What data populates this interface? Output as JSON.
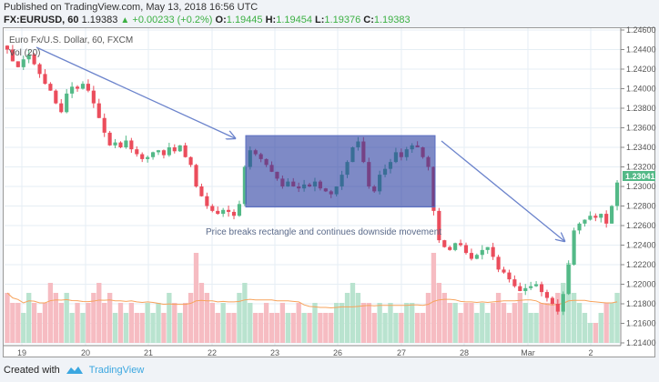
{
  "header": {
    "published": "Published on TradingView.com, May 13, 2018 16:56 UTC",
    "symbol": "FX:EURUSD, 60",
    "last": "1.19383",
    "change": "+0.00233 (+0.2%)",
    "o_label": "O:",
    "o": "1.19445",
    "h_label": "H:",
    "h": "1.19454",
    "l_label": "L:",
    "l": "1.19376",
    "c_label": "C:",
    "c": "1.19383"
  },
  "legend": {
    "title": "Euro Fx/U.S. Dollar, 60, FXCM",
    "vol": "Vol (20)"
  },
  "annotation": {
    "text": "Price breaks rectangle and continues downside movement",
    "rect_top": 1.2352,
    "rect_bottom": 1.2279
  },
  "last_price_label": "1.23041",
  "footer": {
    "created": "Created with",
    "brand": "TradingView"
  },
  "colors": {
    "up": "#53b987",
    "down": "#eb4d5c",
    "annotation": "#5b6fc2",
    "ma": "#f7a35c",
    "badge": "#53b987"
  },
  "chart_data": {
    "type": "candlestick",
    "ylim": [
      1.214,
      1.246
    ],
    "y_ticks": [
      "1.24600",
      "1.24400",
      "1.24200",
      "1.24000",
      "1.23800",
      "1.23600",
      "1.23400",
      "1.23200",
      "1.23000",
      "1.22800",
      "1.22600",
      "1.22400",
      "1.22200",
      "1.22000",
      "1.21800",
      "1.21600",
      "1.21400"
    ],
    "x_ticks": [
      "19",
      "20",
      "21",
      "22",
      "23",
      "26",
      "27",
      "28",
      "Mar",
      "2"
    ],
    "closes": [
      1.244,
      1.2428,
      1.2422,
      1.243,
      1.2435,
      1.2425,
      1.2415,
      1.2405,
      1.2398,
      1.2385,
      1.2376,
      1.2395,
      1.2402,
      1.24,
      1.2405,
      1.2398,
      1.2385,
      1.237,
      1.2355,
      1.2342,
      1.2345,
      1.234,
      1.2347,
      1.2338,
      1.2333,
      1.2328,
      1.233,
      1.2335,
      1.2337,
      1.2332,
      1.234,
      1.2336,
      1.2342,
      1.233,
      1.2322,
      1.23,
      1.229,
      1.228,
      1.2275,
      1.2272,
      1.2276,
      1.2274,
      1.227,
      1.2282,
      1.232,
      1.2337,
      1.2333,
      1.2328,
      1.2322,
      1.2315,
      1.2308,
      1.23,
      1.2305,
      1.23,
      1.2298,
      1.2302,
      1.23,
      1.2305,
      1.2298,
      1.2295,
      1.2292,
      1.23,
      1.2312,
      1.2325,
      1.234,
      1.2346,
      1.2325,
      1.23,
      1.2295,
      1.2312,
      1.2318,
      1.2325,
      1.2335,
      1.233,
      1.2338,
      1.2342,
      1.234,
      1.233,
      1.232,
      1.2275,
      1.2245,
      1.2238,
      1.2235,
      1.2242,
      1.224,
      1.2232,
      1.2226,
      1.223,
      1.2235,
      1.2238,
      1.2228,
      1.2215,
      1.2212,
      1.2205,
      1.2198,
      1.2193,
      1.2196,
      1.2198,
      1.22,
      1.2192,
      1.2186,
      1.218,
      1.2172,
      1.219,
      1.222,
      1.2255,
      1.2262,
      1.2266,
      1.227,
      1.2268,
      1.2272,
      1.2262,
      1.228,
      1.2304
    ],
    "volumes": [
      5,
      4,
      4,
      3,
      5,
      4,
      3,
      4,
      6,
      5,
      4,
      5,
      3,
      4,
      3,
      4,
      5,
      6,
      4,
      5,
      3,
      4,
      3,
      4,
      3,
      3,
      4,
      3,
      4,
      3,
      5,
      4,
      3,
      4,
      5,
      9,
      6,
      5,
      4,
      3,
      4,
      3,
      3,
      5,
      6,
      4,
      3,
      3,
      4,
      3,
      3,
      4,
      3,
      3,
      4,
      3,
      3,
      4,
      3,
      3,
      3,
      4,
      4,
      5,
      6,
      5,
      4,
      4,
      3,
      4,
      3,
      4,
      3,
      3,
      4,
      4,
      3,
      3,
      5,
      9,
      6,
      5,
      4,
      4,
      3,
      4,
      4,
      3,
      4,
      3,
      4,
      5,
      4,
      3,
      4,
      5,
      4,
      3,
      3,
      4,
      4,
      4,
      5,
      6,
      8,
      5,
      4,
      3,
      2,
      2,
      3,
      4,
      4,
      5
    ]
  }
}
